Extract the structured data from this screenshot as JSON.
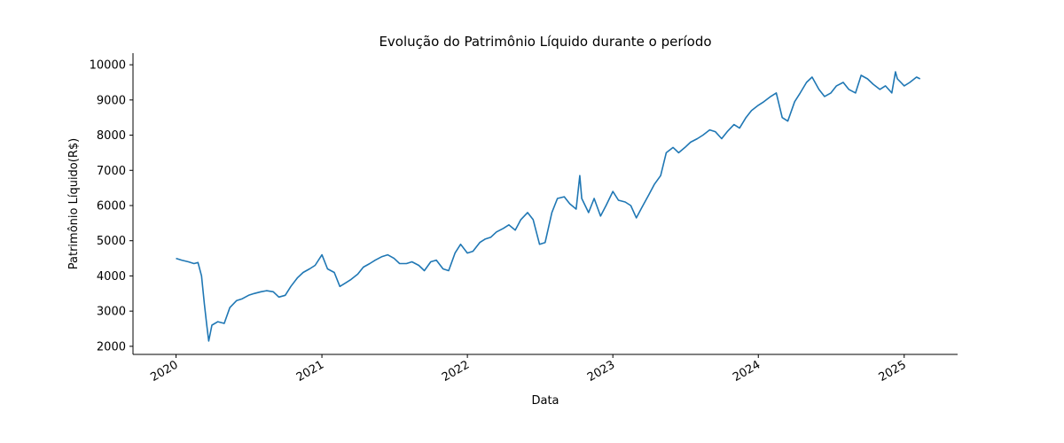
{
  "chart_data": {
    "type": "line",
    "title": "Evolução do Patrimônio Líquido durante o período",
    "xlabel": "Data",
    "ylabel": "Patrimônio Líquido(R$)",
    "xlim": [
      "2019-09-15",
      "2025-05-15"
    ],
    "ylim": [
      1770,
      10330
    ],
    "x_ticks": [
      "2020",
      "2021",
      "2022",
      "2023",
      "2024",
      "2025"
    ],
    "x_tick_dates": [
      "2020-01-01",
      "2021-01-01",
      "2022-01-01",
      "2023-01-01",
      "2024-01-01",
      "2025-01-01"
    ],
    "y_ticks": [
      2000,
      3000,
      4000,
      5000,
      6000,
      7000,
      8000,
      9000,
      10000
    ],
    "grid": false,
    "line_color": "#1f77b4",
    "series": [
      {
        "x": [
          "2020-01-01",
          "2020-01-15",
          "2020-02-01",
          "2020-02-15",
          "2020-02-25",
          "2020-03-05",
          "2020-03-12",
          "2020-03-18",
          "2020-03-23",
          "2020-03-31",
          "2020-04-15",
          "2020-05-01",
          "2020-05-15",
          "2020-06-01",
          "2020-06-15",
          "2020-07-01",
          "2020-07-15",
          "2020-08-01",
          "2020-08-15",
          "2020-09-01",
          "2020-09-15",
          "2020-10-01",
          "2020-10-15",
          "2020-11-01",
          "2020-11-15",
          "2020-12-01",
          "2020-12-15",
          "2021-01-01",
          "2021-01-15",
          "2021-02-01",
          "2021-02-15",
          "2021-03-01",
          "2021-03-15",
          "2021-04-01",
          "2021-04-15",
          "2021-05-01",
          "2021-05-15",
          "2021-06-01",
          "2021-06-15",
          "2021-07-01",
          "2021-07-15",
          "2021-08-01",
          "2021-08-15",
          "2021-09-01",
          "2021-09-15",
          "2021-10-01",
          "2021-10-15",
          "2021-11-01",
          "2021-11-15",
          "2021-12-01",
          "2021-12-15",
          "2022-01-01",
          "2022-01-15",
          "2022-02-01",
          "2022-02-15",
          "2022-03-01",
          "2022-03-15",
          "2022-04-01",
          "2022-04-15",
          "2022-05-01",
          "2022-05-15",
          "2022-06-01",
          "2022-06-15",
          "2022-07-01",
          "2022-07-15",
          "2022-08-01",
          "2022-08-15",
          "2022-09-01",
          "2022-09-15",
          "2022-10-01",
          "2022-10-10",
          "2022-10-15",
          "2022-11-01",
          "2022-11-15",
          "2022-12-01",
          "2022-12-15",
          "2023-01-01",
          "2023-01-15",
          "2023-02-01",
          "2023-02-15",
          "2023-03-01",
          "2023-03-15",
          "2023-04-01",
          "2023-04-15",
          "2023-05-01",
          "2023-05-15",
          "2023-06-01",
          "2023-06-15",
          "2023-07-01",
          "2023-07-15",
          "2023-08-01",
          "2023-08-15",
          "2023-09-01",
          "2023-09-15",
          "2023-10-01",
          "2023-10-15",
          "2023-11-01",
          "2023-11-15",
          "2023-12-01",
          "2023-12-15",
          "2024-01-01",
          "2024-01-15",
          "2024-02-01",
          "2024-02-15",
          "2024-03-01",
          "2024-03-15",
          "2024-04-01",
          "2024-04-15",
          "2024-05-01",
          "2024-05-15",
          "2024-06-01",
          "2024-06-15",
          "2024-07-01",
          "2024-07-15",
          "2024-08-01",
          "2024-08-15",
          "2024-09-01",
          "2024-09-15",
          "2024-10-01",
          "2024-10-15",
          "2024-11-01",
          "2024-11-15",
          "2024-12-01",
          "2024-12-10",
          "2024-12-15",
          "2025-01-01",
          "2025-01-15",
          "2025-02-01",
          "2025-02-10"
        ],
        "values": [
          4500,
          4450,
          4400,
          4350,
          4380,
          4000,
          3200,
          2600,
          2150,
          2600,
          2700,
          2650,
          3100,
          3300,
          3350,
          3450,
          3500,
          3550,
          3580,
          3550,
          3400,
          3450,
          3700,
          3950,
          4100,
          4200,
          4300,
          4600,
          4200,
          4100,
          3700,
          3800,
          3900,
          4050,
          4250,
          4350,
          4450,
          4550,
          4600,
          4500,
          4350,
          4350,
          4400,
          4300,
          4150,
          4400,
          4450,
          4200,
          4150,
          4650,
          4900,
          4650,
          4700,
          4950,
          5050,
          5100,
          5250,
          5350,
          5450,
          5300,
          5600,
          5800,
          5600,
          4900,
          4950,
          5800,
          6200,
          6250,
          6050,
          5900,
          6850,
          6200,
          5800,
          6200,
          5700,
          6000,
          6400,
          6150,
          6100,
          6000,
          5650,
          5950,
          6300,
          6600,
          6850,
          7500,
          7650,
          7500,
          7650,
          7800,
          7900,
          8000,
          8150,
          8100,
          7900,
          8100,
          8300,
          8200,
          8500,
          8700,
          8850,
          8950,
          9100,
          9200,
          8500,
          8400,
          8950,
          9200,
          9500,
          9650,
          9300,
          9100,
          9200,
          9400,
          9500,
          9300,
          9200,
          9700,
          9600,
          9450,
          9300,
          9400,
          9200,
          9800,
          9600,
          9400,
          9500,
          9650,
          9600
        ]
      }
    ]
  }
}
